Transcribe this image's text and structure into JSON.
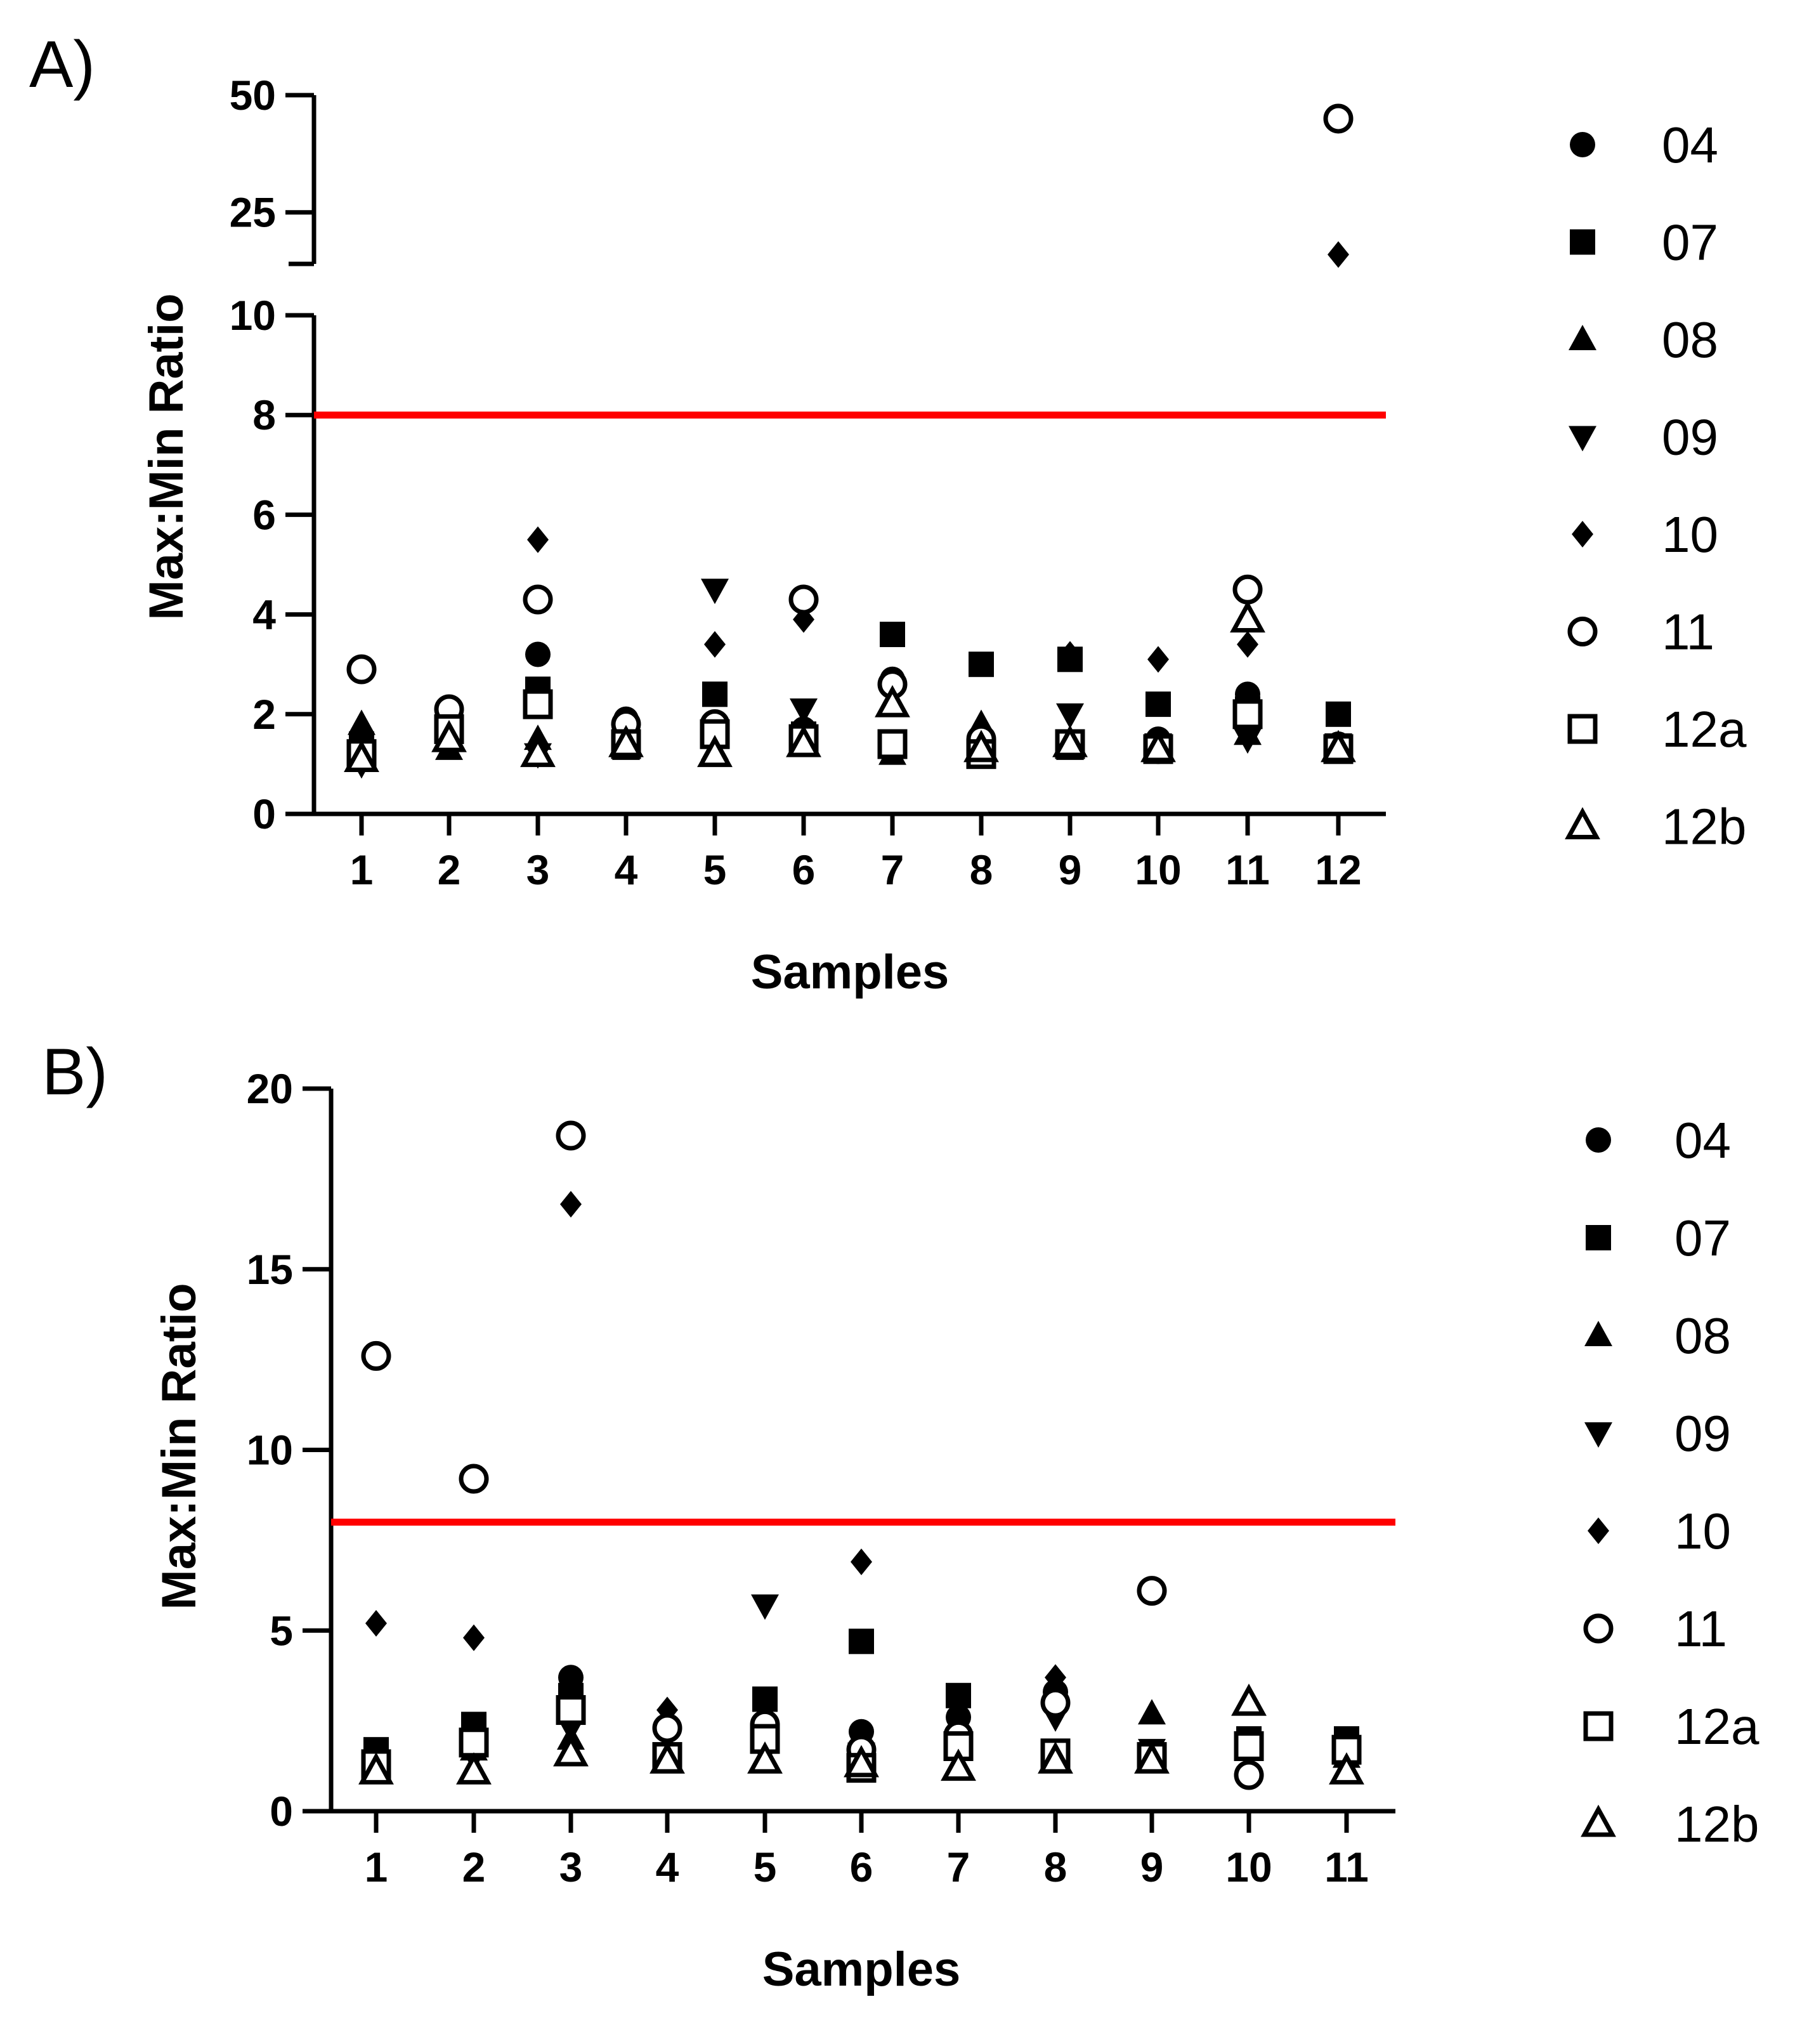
{
  "chart_data": [
    {
      "panel": "A)",
      "type": "scatter",
      "xlabel": "Samples",
      "ylabel": "Max:Min  Ratio",
      "categories": [
        "1",
        "2",
        "3",
        "4",
        "5",
        "6",
        "7",
        "8",
        "9",
        "10",
        "11",
        "12"
      ],
      "yaxis": {
        "segments": [
          {
            "range": [
              0,
              10
            ],
            "ticks": [
              0,
              2,
              4,
              6,
              8,
              10
            ]
          },
          {
            "range": [
              14,
              50
            ],
            "ticks": [
              25,
              50
            ]
          }
        ],
        "break": [
          10,
          14
        ]
      },
      "threshold": {
        "value": 8,
        "color": "#ff0000"
      },
      "series": [
        {
          "name": "04",
          "marker": "circle-filled",
          "values": [
            1.3,
            1.8,
            3.2,
            1.9,
            1.6,
            1.7,
            2.7,
            1.5,
            1.4,
            1.5,
            2.4,
            1.4
          ]
        },
        {
          "name": "07",
          "marker": "square-filled",
          "values": [
            1.4,
            1.6,
            2.5,
            1.5,
            2.4,
            1.6,
            3.6,
            3.0,
            3.1,
            2.2,
            2.1,
            2.0
          ]
        },
        {
          "name": "08",
          "marker": "triangle-up-filled",
          "values": [
            1.8,
            1.3,
            1.5,
            1.3,
            1.3,
            1.5,
            1.2,
            1.8,
            1.3,
            1.3,
            1.6,
            1.3
          ]
        },
        {
          "name": "09",
          "marker": "triangle-down-filled",
          "values": [
            1.0,
            1.4,
            1.2,
            1.5,
            4.5,
            2.1,
            1.3,
            1.3,
            2.0,
            1.4,
            1.5,
            1.4
          ]
        },
        {
          "name": "10",
          "marker": "diamond-filled",
          "values": [
            1.5,
            1.5,
            5.5,
            1.6,
            3.4,
            3.9,
            1.4,
            1.2,
            3.2,
            3.1,
            3.4,
            16
          ]
        },
        {
          "name": "11",
          "marker": "circle-open",
          "values": [
            2.9,
            2.1,
            4.3,
            1.8,
            1.8,
            4.3,
            2.6,
            1.5,
            1.4,
            1.3,
            4.5,
            45
          ]
        },
        {
          "name": "12a",
          "marker": "square-open",
          "values": [
            1.2,
            1.7,
            2.2,
            1.4,
            1.6,
            1.5,
            1.4,
            1.2,
            1.4,
            1.3,
            2.0,
            1.3
          ]
        },
        {
          "name": "12b",
          "marker": "triangle-up-open",
          "values": [
            1.1,
            1.5,
            1.2,
            1.4,
            1.2,
            1.4,
            2.2,
            1.3,
            1.4,
            1.3,
            3.9,
            1.3
          ]
        }
      ]
    },
    {
      "panel": "B)",
      "type": "scatter",
      "xlabel": "Samples",
      "ylabel": "Max:Min  Ratio",
      "categories": [
        "1",
        "2",
        "3",
        "4",
        "5",
        "6",
        "7",
        "8",
        "9",
        "10",
        "11"
      ],
      "yaxis": {
        "range": [
          0,
          20
        ],
        "ticks": [
          0,
          5,
          10,
          15,
          20
        ]
      },
      "threshold": {
        "value": 8,
        "color": "#ff0000"
      },
      "series": [
        {
          "name": "04",
          "marker": "circle-filled",
          "values": [
            1.6,
            1.9,
            3.7,
            1.6,
            2.2,
            2.2,
            2.6,
            3.3,
            1.4,
            1.7,
            1.7
          ]
        },
        {
          "name": "07",
          "marker": "square-filled",
          "values": [
            1.7,
            2.4,
            3.2,
            1.4,
            3.1,
            4.7,
            3.2,
            1.5,
            1.5,
            2.0,
            2.0
          ]
        },
        {
          "name": "08",
          "marker": "triangle-up-filled",
          "values": [
            1.4,
            1.7,
            2.0,
            1.6,
            1.5,
            1.4,
            1.3,
            1.4,
            2.7,
            1.9,
            1.5
          ]
        },
        {
          "name": "09",
          "marker": "triangle-down-filled",
          "values": [
            1.3,
            1.5,
            2.3,
            1.5,
            5.7,
            1.6,
            1.6,
            2.6,
            1.7,
            1.6,
            1.6
          ]
        },
        {
          "name": "10",
          "marker": "diamond-filled",
          "values": [
            5.2,
            4.8,
            16.8,
            2.8,
            1.7,
            6.9,
            1.7,
            3.7,
            1.6,
            1.6,
            1.6
          ]
        },
        {
          "name": "11",
          "marker": "circle-open",
          "values": [
            12.6,
            9.2,
            18.7,
            2.3,
            2.4,
            1.7,
            2.1,
            3.0,
            6.1,
            1.0,
            1.8
          ]
        },
        {
          "name": "12a",
          "marker": "square-open",
          "values": [
            1.3,
            1.9,
            2.8,
            1.5,
            2.0,
            1.2,
            1.8,
            1.6,
            1.5,
            1.8,
            1.7
          ]
        },
        {
          "name": "12b",
          "marker": "triangle-up-open",
          "values": [
            1.1,
            1.1,
            1.6,
            1.4,
            1.4,
            1.3,
            1.2,
            1.4,
            1.4,
            3.0,
            1.1
          ]
        }
      ]
    }
  ]
}
